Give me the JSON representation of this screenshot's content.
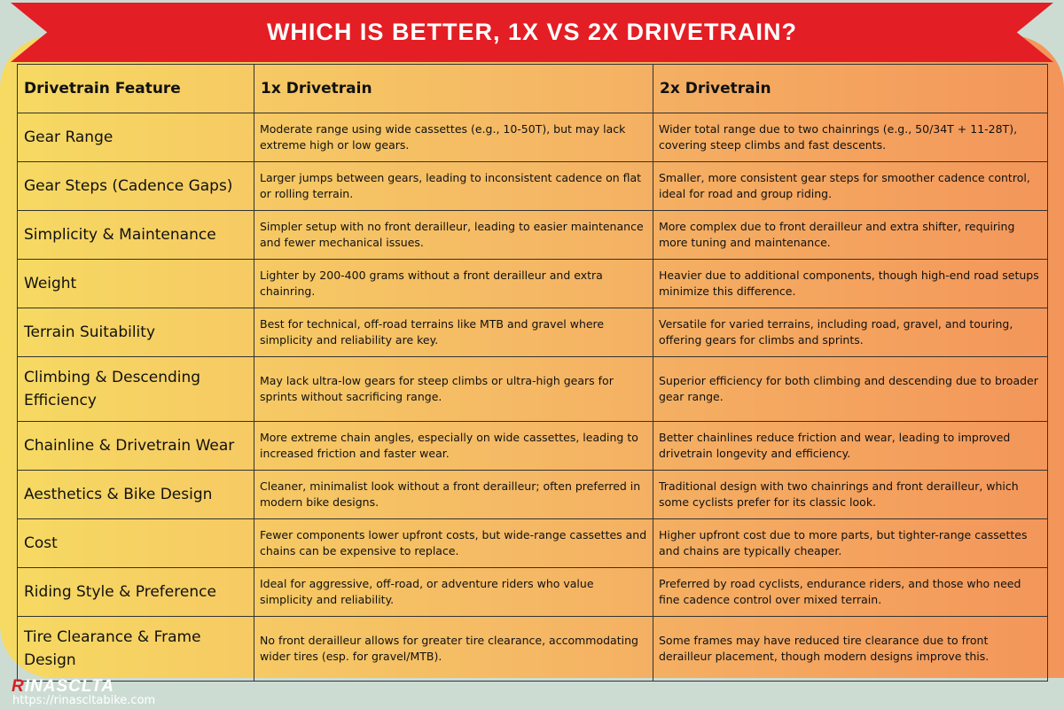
{
  "title": "WHICH IS BETTER, 1X VS 2X DRIVETRAIN?",
  "colors": {
    "banner": "#e31e24",
    "background": "#cddcd3",
    "gradient_start": "#f6da62",
    "gradient_end": "#f3955a"
  },
  "table": {
    "headers": [
      "Drivetrain Feature",
      "1x Drivetrain",
      "2x Drivetrain"
    ],
    "rows": [
      {
        "feature": "Gear Range",
        "one_x": "Moderate range using wide cassettes (e.g., 10-50T), but may lack extreme high or low gears.",
        "two_x": "Wider total range due to two chainrings (e.g., 50/34T + 11-28T), covering steep climbs and fast descents."
      },
      {
        "feature": "Gear Steps (Cadence Gaps)",
        "one_x": "Larger jumps between gears, leading to inconsistent cadence on flat or rolling terrain.",
        "two_x": "Smaller, more consistent gear steps for smoother cadence control, ideal for road and group riding."
      },
      {
        "feature": "Simplicity & Maintenance",
        "one_x": "Simpler setup with no front derailleur, leading to easier maintenance and fewer mechanical issues.",
        "two_x": "More complex due to front derailleur and extra shifter, requiring more tuning and maintenance."
      },
      {
        "feature": "Weight",
        "one_x": "Lighter by 200-400 grams without a front derailleur and extra chainring.",
        "two_x": "Heavier due to additional components, though high-end road setups minimize this difference."
      },
      {
        "feature": "Terrain Suitability",
        "one_x": "Best for technical, off-road terrains like MTB and gravel where simplicity and reliability are key.",
        "two_x": "Versatile for varied terrains, including road, gravel, and touring, offering gears for climbs and sprints."
      },
      {
        "feature": "Climbing & Descending Efficiency",
        "one_x": "May lack ultra-low gears for steep climbs or ultra-high gears for sprints without sacrificing range.",
        "two_x": "Superior efficiency for both climbing and descending due to broader gear range."
      },
      {
        "feature": "Chainline & Drivetrain Wear",
        "one_x": "More extreme chain angles, especially on wide cassettes, leading to increased friction and faster wear.",
        "two_x": "Better chainlines reduce friction and wear, leading to improved drivetrain longevity and efficiency."
      },
      {
        "feature": "Aesthetics & Bike Design",
        "one_x": "Cleaner, minimalist look without a front derailleur; often preferred in modern bike designs.",
        "two_x": "Traditional design with two chainrings and front derailleur, which some cyclists prefer for its classic look."
      },
      {
        "feature": "Cost",
        "one_x": "Fewer components lower upfront costs, but wide-range cassettes and chains can be expensive to replace.",
        "two_x": "Higher upfront cost due to more parts, but tighter-range cassettes and chains are typically cheaper."
      },
      {
        "feature": "Riding Style & Preference",
        "one_x": "Ideal for aggressive, off-road, or adventure riders who value simplicity and reliability.",
        "two_x": "Preferred by road cyclists, endurance riders, and those who need fine cadence control over mixed terrain."
      },
      {
        "feature": "Tire Clearance & Frame Design",
        "one_x": "No front derailleur allows for greater tire clearance, accommodating wider tires (esp. for gravel/MTB).",
        "two_x": "Some frames may have reduced tire clearance due to front derailleur placement, though modern designs improve this."
      }
    ]
  },
  "brand": {
    "logo_first": "R",
    "logo_rest": "INASCLTA",
    "url": "https://rinascltabike.com"
  }
}
